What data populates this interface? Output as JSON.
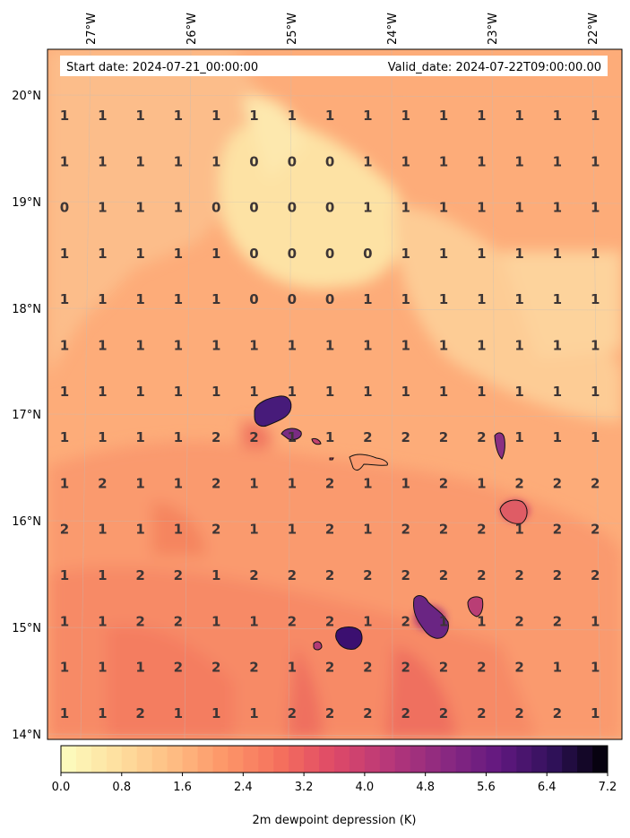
{
  "header": {
    "start_date": "Start date: 2024-07-21_00:00:00",
    "valid_date": "Valid_date: 2024-07-22T09:00:00.00"
  },
  "map": {
    "lon_ticks": [
      "27°W",
      "26°W",
      "25°W",
      "24°W",
      "23°W",
      "22°W"
    ],
    "lat_ticks": [
      "20°N",
      "19°N",
      "18°N",
      "17°N",
      "16°N",
      "15°N",
      "14°N"
    ],
    "grid_values": [
      [
        "1",
        "1",
        "1",
        "1",
        "1",
        "1",
        "1",
        "1",
        "1",
        "1",
        "1",
        "1",
        "1",
        "1",
        "1"
      ],
      [
        "1",
        "1",
        "1",
        "1",
        "1",
        "0",
        "0",
        "0",
        "1",
        "1",
        "1",
        "1",
        "1",
        "1",
        "1"
      ],
      [
        "0",
        "1",
        "1",
        "1",
        "0",
        "0",
        "0",
        "0",
        "1",
        "1",
        "1",
        "1",
        "1",
        "1",
        "1"
      ],
      [
        "1",
        "1",
        "1",
        "1",
        "1",
        "0",
        "0",
        "0",
        "0",
        "1",
        "1",
        "1",
        "1",
        "1",
        "1"
      ],
      [
        "1",
        "1",
        "1",
        "1",
        "1",
        "0",
        "0",
        "0",
        "1",
        "1",
        "1",
        "1",
        "1",
        "1",
        "1"
      ],
      [
        "1",
        "1",
        "1",
        "1",
        "1",
        "1",
        "1",
        "1",
        "1",
        "1",
        "1",
        "1",
        "1",
        "1",
        "1"
      ],
      [
        "1",
        "1",
        "1",
        "1",
        "1",
        "1",
        "1",
        "1",
        "1",
        "1",
        "1",
        "1",
        "1",
        "1",
        "1"
      ],
      [
        "1",
        "1",
        "1",
        "1",
        "2",
        "2",
        "1",
        "1",
        "2",
        "2",
        "2",
        "2",
        "1",
        "1",
        "1"
      ],
      [
        "1",
        "2",
        "1",
        "1",
        "2",
        "1",
        "1",
        "2",
        "1",
        "1",
        "2",
        "1",
        "2",
        "2",
        "2"
      ],
      [
        "2",
        "1",
        "1",
        "1",
        "2",
        "1",
        "1",
        "2",
        "1",
        "2",
        "2",
        "2",
        "1",
        "2",
        "2"
      ],
      [
        "1",
        "1",
        "2",
        "2",
        "1",
        "2",
        "2",
        "2",
        "2",
        "2",
        "2",
        "2",
        "2",
        "2",
        "2"
      ],
      [
        "1",
        "1",
        "2",
        "2",
        "1",
        "1",
        "2",
        "2",
        "1",
        "2",
        "1",
        "1",
        "2",
        "2",
        "1"
      ],
      [
        "1",
        "1",
        "1",
        "2",
        "2",
        "2",
        "1",
        "2",
        "2",
        "2",
        "2",
        "2",
        "2",
        "1",
        "1"
      ],
      [
        "1",
        "1",
        "2",
        "1",
        "1",
        "1",
        "2",
        "2",
        "2",
        "2",
        "2",
        "2",
        "2",
        "2",
        "1"
      ]
    ]
  },
  "colorbar": {
    "title": "2m dewpoint depression (K)",
    "tick_labels": [
      "0.0",
      "0.8",
      "1.6",
      "2.4",
      "3.2",
      "4.0",
      "4.8",
      "5.6",
      "6.4",
      "7.2"
    ],
    "colormap": "magma_r",
    "range": [
      0.0,
      7.2
    ]
  }
}
